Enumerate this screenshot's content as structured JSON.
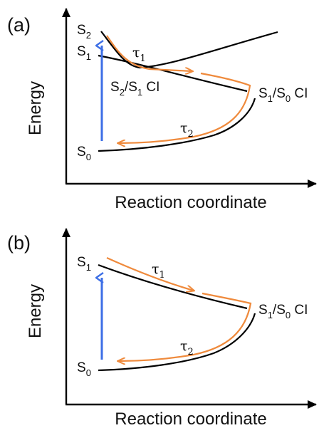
{
  "panel_a": {
    "label": "(a)",
    "y_axis_label": "Energy",
    "x_axis_label": "Reaction coordinate",
    "states": {
      "s2": "S",
      "s2_sub": "2",
      "s1": "S",
      "s1_sub": "1",
      "s0": "S",
      "s0_sub": "0"
    },
    "ci_left": {
      "s1": "S",
      "s1_sub": "2",
      "mid": "/S",
      "mid_sub": "1",
      "tail": " CI"
    },
    "ci_right": {
      "s1": "S",
      "s1_sub": "1",
      "mid": "/S",
      "mid_sub": "0",
      "tail": " CI"
    },
    "tau1": {
      "sym": "τ",
      "sub": "1"
    },
    "tau2": {
      "sym": "τ",
      "sub": "2"
    }
  },
  "panel_b": {
    "label": "(b)",
    "y_axis_label": "Energy",
    "x_axis_label": "Reaction coordinate",
    "states": {
      "s1": "S",
      "s1_sub": "1",
      "s0": "S",
      "s0_sub": "0"
    },
    "ci_right": {
      "s1": "S",
      "s1_sub": "1",
      "mid": "/S",
      "mid_sub": "0",
      "tail": " CI"
    },
    "tau1": {
      "sym": "τ",
      "sub": "1"
    },
    "tau2": {
      "sym": "τ",
      "sub": "2"
    }
  },
  "colors": {
    "excitation": "#3d6fe6",
    "pathway": "#ef8a3c",
    "curve": "#000000"
  }
}
